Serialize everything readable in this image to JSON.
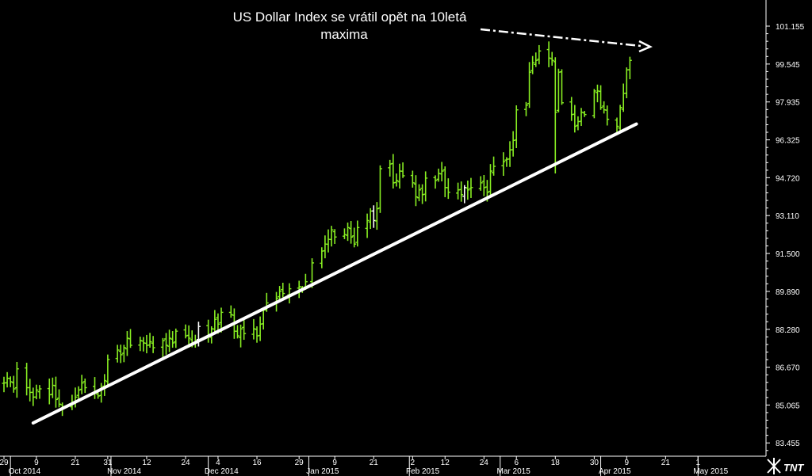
{
  "chart_data": {
    "type": "ohlc",
    "title": "",
    "xlabel": "",
    "ylabel": "",
    "annotation": [
      "US Dollar Index se vrátil opět na 10letá",
      "maxima"
    ],
    "ylim": [
      82.9,
      102.7
    ],
    "y_ticks": [
      "101.155",
      "99.545",
      "97.935",
      "96.325",
      "94.720",
      "93.110",
      "91.500",
      "89.890",
      "88.280",
      "86.670",
      "85.065",
      "83.455"
    ],
    "x_day_ticks": [
      "29",
      "9",
      "21",
      "31",
      "12",
      "24",
      "4",
      "16",
      "29",
      "9",
      "21",
      "2",
      "12",
      "24",
      "6",
      "18",
      "30",
      "9",
      "21",
      "1"
    ],
    "x_month_labels": [
      "Oct 2014",
      "Nov 2014",
      "Dec 2014",
      "Jan 2015",
      "Feb 2015",
      "Mar 2015",
      "Apr 2015",
      "May 2015"
    ],
    "trendline": {
      "start": [
        "2014-10-08",
        84.3
      ],
      "end": [
        "2015-04-12",
        97.0
      ]
    },
    "closes": [
      [
        "2014-09-26",
        85.95
      ],
      [
        "2014-09-29",
        86.0
      ],
      [
        "2014-09-30",
        86.2
      ],
      [
        "2014-10-01",
        86.05
      ],
      [
        "2014-10-02",
        85.75
      ],
      [
        "2014-10-03",
        86.6
      ],
      [
        "2014-10-06",
        85.8
      ],
      [
        "2014-10-07",
        85.6
      ],
      [
        "2014-10-08",
        85.4
      ],
      [
        "2014-10-09",
        85.7
      ],
      [
        "2014-10-10",
        85.75
      ],
      [
        "2014-10-13",
        85.5
      ],
      [
        "2014-10-14",
        85.9
      ],
      [
        "2014-10-15",
        85.3
      ],
      [
        "2014-10-16",
        85.1
      ],
      [
        "2014-10-17",
        85.0
      ],
      [
        "2014-10-20",
        85.2
      ],
      [
        "2014-10-21",
        85.4
      ],
      [
        "2014-10-22",
        85.7
      ],
      [
        "2014-10-23",
        86.0
      ],
      [
        "2014-10-24",
        85.8
      ],
      [
        "2014-10-27",
        85.6
      ],
      [
        "2014-10-28",
        85.45
      ],
      [
        "2014-10-29",
        85.8
      ],
      [
        "2014-10-30",
        86.1
      ],
      [
        "2014-10-31",
        87.0
      ],
      [
        "2014-11-03",
        87.4
      ],
      [
        "2014-11-04",
        87.2
      ],
      [
        "2014-11-05",
        87.5
      ],
      [
        "2014-11-06",
        87.9
      ],
      [
        "2014-11-07",
        87.6
      ],
      [
        "2014-11-10",
        87.8
      ],
      [
        "2014-11-11",
        87.7
      ],
      [
        "2014-11-12",
        87.6
      ],
      [
        "2014-11-13",
        87.75
      ],
      [
        "2014-11-14",
        87.5
      ],
      [
        "2014-11-17",
        87.8
      ],
      [
        "2014-11-18",
        87.6
      ],
      [
        "2014-11-19",
        87.9
      ],
      [
        "2014-11-20",
        87.7
      ],
      [
        "2014-11-21",
        88.2
      ],
      [
        "2014-11-24",
        88.0
      ],
      [
        "2014-11-25",
        87.9
      ],
      [
        "2014-11-26",
        87.7
      ],
      [
        "2014-11-27",
        87.8
      ],
      [
        "2014-11-28",
        88.4
      ],
      [
        "2014-12-01",
        88.0
      ],
      [
        "2014-12-02",
        88.3
      ],
      [
        "2014-12-03",
        88.7
      ],
      [
        "2014-12-04",
        88.5
      ],
      [
        "2014-12-05",
        89.0
      ],
      [
        "2014-12-08",
        88.9
      ],
      [
        "2014-12-09",
        88.2
      ],
      [
        "2014-12-10",
        88.0
      ],
      [
        "2014-12-11",
        88.3
      ],
      [
        "2014-12-12",
        88.1
      ],
      [
        "2014-12-15",
        88.3
      ],
      [
        "2014-12-16",
        88.0
      ],
      [
        "2014-12-17",
        88.5
      ],
      [
        "2014-12-18",
        89.1
      ],
      [
        "2014-12-19",
        89.4
      ],
      [
        "2014-12-22",
        89.6
      ],
      [
        "2014-12-23",
        89.9
      ],
      [
        "2014-12-24",
        89.8
      ],
      [
        "2014-12-26",
        90.0
      ],
      [
        "2014-12-29",
        90.1
      ],
      [
        "2014-12-30",
        90.0
      ],
      [
        "2014-12-31",
        90.3
      ],
      [
        "2015-01-02",
        91.1
      ],
      [
        "2015-01-05",
        91.6
      ],
      [
        "2015-01-06",
        91.9
      ],
      [
        "2015-01-07",
        92.1
      ],
      [
        "2015-01-08",
        92.5
      ],
      [
        "2015-01-09",
        92.2
      ],
      [
        "2015-01-12",
        92.3
      ],
      [
        "2015-01-13",
        92.6
      ],
      [
        "2015-01-14",
        92.2
      ],
      [
        "2015-01-15",
        91.9
      ],
      [
        "2015-01-16",
        92.6
      ],
      [
        "2015-01-19",
        92.9
      ],
      [
        "2015-01-20",
        93.3
      ],
      [
        "2015-01-21",
        92.9
      ],
      [
        "2015-01-22",
        93.4
      ],
      [
        "2015-01-23",
        95.1
      ],
      [
        "2015-01-26",
        95.3
      ],
      [
        "2015-01-27",
        94.5
      ],
      [
        "2015-01-28",
        94.6
      ],
      [
        "2015-01-29",
        95.0
      ],
      [
        "2015-01-30",
        94.8
      ],
      [
        "2015-02-02",
        94.5
      ],
      [
        "2015-02-03",
        93.9
      ],
      [
        "2015-02-04",
        94.2
      ],
      [
        "2015-02-05",
        94.0
      ],
      [
        "2015-02-06",
        94.7
      ],
      [
        "2015-02-09",
        94.6
      ],
      [
        "2015-02-10",
        94.9
      ],
      [
        "2015-02-11",
        95.0
      ],
      [
        "2015-02-12",
        94.3
      ],
      [
        "2015-02-13",
        94.1
      ],
      [
        "2015-02-16",
        94.2
      ],
      [
        "2015-02-17",
        94.0
      ],
      [
        "2015-02-18",
        94.3
      ],
      [
        "2015-02-19",
        94.2
      ],
      [
        "2015-02-20",
        94.3
      ],
      [
        "2015-02-23",
        94.5
      ],
      [
        "2015-02-24",
        94.3
      ],
      [
        "2015-02-25",
        94.1
      ],
      [
        "2015-02-26",
        95.0
      ],
      [
        "2015-02-27",
        95.2
      ],
      [
        "2015-03-02",
        95.4
      ],
      [
        "2015-03-03",
        95.5
      ],
      [
        "2015-03-04",
        95.9
      ],
      [
        "2015-03-05",
        96.3
      ],
      [
        "2015-03-06",
        97.6
      ],
      [
        "2015-03-09",
        97.8
      ],
      [
        "2015-03-10",
        99.2
      ],
      [
        "2015-03-11",
        99.6
      ],
      [
        "2015-03-12",
        99.7
      ],
      [
        "2015-03-13",
        100.1
      ],
      [
        "2015-03-16",
        99.8
      ],
      [
        "2015-03-17",
        99.7
      ],
      [
        "2015-03-18",
        97.5
      ],
      [
        "2015-03-19",
        99.2
      ],
      [
        "2015-03-20",
        97.9
      ],
      [
        "2015-03-23",
        97.4
      ],
      [
        "2015-03-24",
        96.9
      ],
      [
        "2015-03-25",
        97.1
      ],
      [
        "2015-03-26",
        97.5
      ],
      [
        "2015-03-27",
        97.4
      ],
      [
        "2015-03-30",
        98.4
      ],
      [
        "2015-03-31",
        98.4
      ],
      [
        "2015-04-01",
        97.7
      ],
      [
        "2015-04-02",
        97.6
      ],
      [
        "2015-04-03",
        97.2
      ],
      [
        "2015-04-06",
        96.9
      ],
      [
        "2015-04-07",
        97.7
      ],
      [
        "2015-04-08",
        98.3
      ],
      [
        "2015-04-09",
        99.3
      ],
      [
        "2015-04-10",
        99.7
      ]
    ],
    "grid": false,
    "legend": "none"
  },
  "colors": {
    "background": "#000000",
    "bars": "#88ee22",
    "highlight_bars": "#ffffff",
    "trendline": "#ffffff",
    "axis": "#ffffff"
  },
  "logo": {
    "icon": "tnt-logo-icon",
    "text": "TNT"
  }
}
